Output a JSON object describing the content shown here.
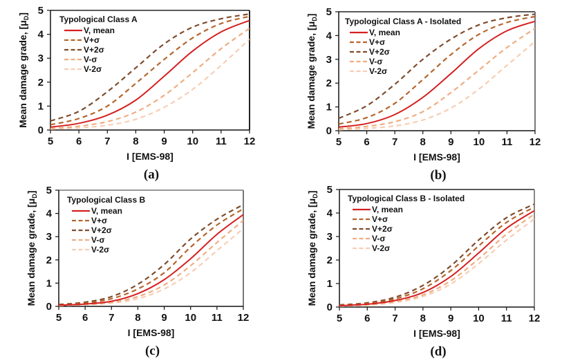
{
  "figure": {
    "panels_caption": [
      "(a)",
      "(b)",
      "(c)",
      "(d)"
    ]
  },
  "chart_data": [
    {
      "type": "line",
      "caption": "(a)",
      "legend_title": "Typological Class A",
      "xlabel": "I [EMS-98]",
      "ylabel": "Mean damage grade, [μD]",
      "ylabel_main": "Mean damage grade, [μ",
      "ylabel_sub": "D",
      "ylabel_end": "]",
      "xlim": [
        5,
        12
      ],
      "ylim": [
        0,
        5
      ],
      "xticks": [
        "5",
        "6",
        "7",
        "8",
        "9",
        "10",
        "11",
        "12"
      ],
      "yticks": [
        "0",
        "1",
        "2",
        "3",
        "4",
        "5"
      ],
      "grid": false,
      "legend_position": "top-left",
      "x": [
        5,
        6,
        7,
        8,
        9,
        10,
        11,
        12
      ],
      "series": [
        {
          "name": "V, mean",
          "style": "solid",
          "color": "#d42020",
          "values": [
            0.12,
            0.28,
            0.62,
            1.25,
            2.25,
            3.3,
            4.1,
            4.58
          ]
        },
        {
          "name": "V+σ",
          "style": "dashed",
          "color": "#b5652b",
          "values": [
            0.22,
            0.48,
            1.0,
            1.95,
            2.95,
            3.85,
            4.45,
            4.75
          ]
        },
        {
          "name": "V+2σ",
          "style": "dashed",
          "color": "#7d4c2c",
          "values": [
            0.38,
            0.78,
            1.6,
            2.6,
            3.6,
            4.3,
            4.65,
            4.85
          ]
        },
        {
          "name": "V-σ",
          "style": "dashed",
          "color": "#f0ad80",
          "values": [
            0.07,
            0.16,
            0.35,
            0.75,
            1.45,
            2.4,
            3.4,
            4.25
          ]
        },
        {
          "name": "V-2σ",
          "style": "dashed",
          "color": "#f7ceb4",
          "values": [
            0.04,
            0.09,
            0.2,
            0.45,
            0.95,
            1.7,
            2.7,
            3.8
          ]
        }
      ]
    },
    {
      "type": "line",
      "caption": "(b)",
      "legend_title": "Typological Class A - Isolated",
      "xlabel": "I [EMS-98]",
      "ylabel": "Mean damage grade, [μD]",
      "ylabel_main": "Mean damage grade, [μ",
      "ylabel_sub": "D",
      "ylabel_end": "]",
      "xlim": [
        5,
        12
      ],
      "ylim": [
        0,
        5
      ],
      "xticks": [
        "5",
        "6",
        "7",
        "8",
        "9",
        "10",
        "11",
        "12"
      ],
      "yticks": [
        "0",
        "1",
        "2",
        "3",
        "4",
        "5"
      ],
      "grid": false,
      "legend_position": "top-left",
      "x": [
        5,
        6,
        7,
        8,
        9,
        10,
        11,
        12
      ],
      "series": [
        {
          "name": "V, mean",
          "style": "solid",
          "color": "#d42020",
          "values": [
            0.15,
            0.3,
            0.68,
            1.4,
            2.4,
            3.45,
            4.2,
            4.6
          ]
        },
        {
          "name": "V+σ",
          "style": "dashed",
          "color": "#b5652b",
          "values": [
            0.28,
            0.55,
            1.15,
            2.15,
            3.2,
            4.05,
            4.55,
            4.8
          ]
        },
        {
          "name": "V+2σ",
          "style": "dashed",
          "color": "#7d4c2c",
          "values": [
            0.52,
            1.05,
            1.95,
            3.0,
            3.85,
            4.45,
            4.75,
            4.9
          ]
        },
        {
          "name": "V-σ",
          "style": "dashed",
          "color": "#f0ad80",
          "values": [
            0.08,
            0.18,
            0.38,
            0.8,
            1.6,
            2.55,
            3.5,
            4.3
          ]
        },
        {
          "name": "V-2σ",
          "style": "dashed",
          "color": "#f7ceb4",
          "values": [
            0.04,
            0.1,
            0.2,
            0.45,
            0.95,
            1.75,
            2.75,
            3.75
          ]
        }
      ]
    },
    {
      "type": "line",
      "caption": "(c)",
      "legend_title": "Typological Class B",
      "xlabel": "I [EMS-98]",
      "ylabel": "Mean damage grade, [μD]",
      "ylabel_main": "Mean damage grade, [μ",
      "ylabel_sub": "D",
      "ylabel_end": "]",
      "xlim": [
        5,
        12
      ],
      "ylim": [
        0,
        5
      ],
      "xticks": [
        "5",
        "6",
        "7",
        "8",
        "9",
        "10",
        "11",
        "12"
      ],
      "yticks": [
        "0",
        "1",
        "2",
        "3",
        "4",
        "5"
      ],
      "grid": false,
      "legend_position": "top-left",
      "x": [
        5,
        6,
        7,
        8,
        9,
        10,
        11,
        12
      ],
      "series": [
        {
          "name": "V, mean",
          "style": "solid",
          "color": "#d42020",
          "values": [
            0.05,
            0.1,
            0.22,
            0.55,
            1.15,
            2.05,
            3.1,
            3.95
          ]
        },
        {
          "name": "V+σ",
          "style": "dashed",
          "color": "#b5652b",
          "values": [
            0.06,
            0.14,
            0.33,
            0.75,
            1.45,
            2.55,
            3.5,
            4.2
          ]
        },
        {
          "name": "V+2σ",
          "style": "dashed",
          "color": "#7d4c2c",
          "values": [
            0.08,
            0.18,
            0.42,
            0.95,
            1.8,
            2.9,
            3.75,
            4.38
          ]
        },
        {
          "name": "V-σ",
          "style": "dashed",
          "color": "#f0ad80",
          "values": [
            0.04,
            0.09,
            0.18,
            0.42,
            0.92,
            1.75,
            2.75,
            3.7
          ]
        },
        {
          "name": "V-2σ",
          "style": "dashed",
          "color": "#f7ceb4",
          "values": [
            0.03,
            0.07,
            0.14,
            0.33,
            0.75,
            1.45,
            2.4,
            3.35
          ]
        }
      ]
    },
    {
      "type": "line",
      "caption": "(d)",
      "legend_title": "Typological Class B - Isolated",
      "xlabel": "I [EMS-98]",
      "ylabel": "Mean damage grade, [μD]",
      "ylabel_main": "Mean damage grade, [μ",
      "ylabel_sub": "D",
      "ylabel_end": "]",
      "xlim": [
        5,
        12
      ],
      "ylim": [
        0,
        5
      ],
      "xticks": [
        "5",
        "6",
        "7",
        "8",
        "9",
        "10",
        "11",
        "12"
      ],
      "yticks": [
        "0",
        "1",
        "2",
        "3",
        "4",
        "5"
      ],
      "grid": false,
      "legend_position": "top-left",
      "x": [
        5,
        6,
        7,
        8,
        9,
        10,
        11,
        12
      ],
      "series": [
        {
          "name": "V, mean",
          "style": "solid",
          "color": "#d42020",
          "values": [
            0.06,
            0.12,
            0.28,
            0.62,
            1.3,
            2.3,
            3.35,
            4.1
          ]
        },
        {
          "name": "V+σ",
          "style": "dashed",
          "color": "#b5652b",
          "values": [
            0.07,
            0.15,
            0.35,
            0.78,
            1.55,
            2.6,
            3.6,
            4.25
          ]
        },
        {
          "name": "V+2σ",
          "style": "dashed",
          "color": "#7d4c2c",
          "values": [
            0.09,
            0.18,
            0.42,
            0.92,
            1.75,
            2.85,
            3.8,
            4.38
          ]
        },
        {
          "name": "V-σ",
          "style": "dashed",
          "color": "#f0ad80",
          "values": [
            0.05,
            0.1,
            0.24,
            0.52,
            1.12,
            2.05,
            3.1,
            3.95
          ]
        },
        {
          "name": "V-2σ",
          "style": "dashed",
          "color": "#f7ceb4",
          "values": [
            0.04,
            0.08,
            0.2,
            0.45,
            0.98,
            1.85,
            2.85,
            3.75
          ]
        }
      ]
    }
  ]
}
